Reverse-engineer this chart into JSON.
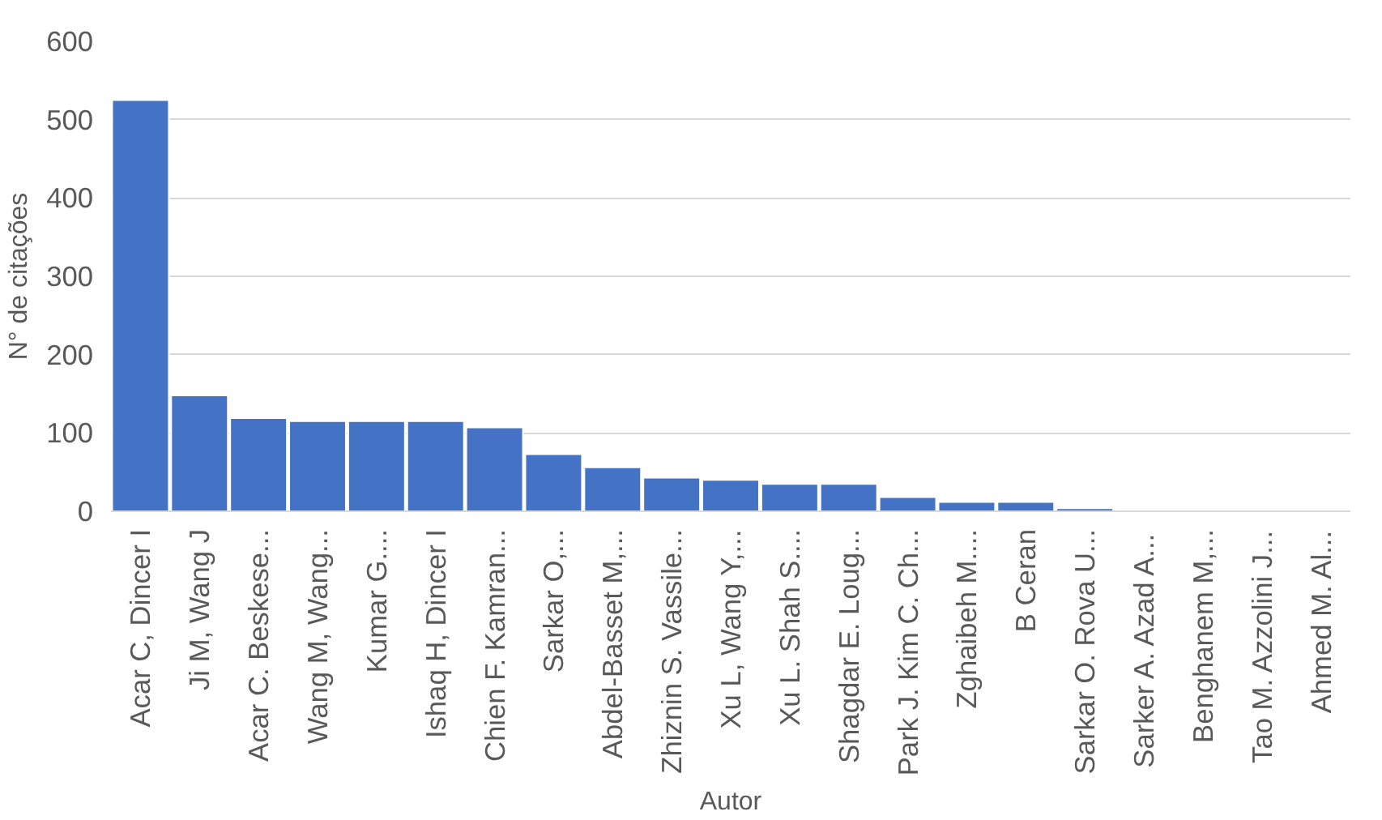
{
  "chart_data": {
    "type": "bar",
    "xlabel": "Autor",
    "ylabel": "N° de citações",
    "categories": [
      "Acar C, Dincer I",
      "Ji M, Wang J",
      "Acar C. Beskese...",
      "Wang M, Wang...",
      "Kumar G....",
      "Ishaq H, Dincer I",
      "Chien F. Kamran...",
      "Sarkar O,...",
      "Abdel-Basset M,...",
      "Zhiznin S. Vassile...",
      "Xu L, Wang Y,...",
      "Xu L. Shah S....",
      "Shagdar E. Loug...",
      "Park J. Kim C. Ch...",
      "Zghaibeh M....",
      "B Ceran",
      "Sarkar O. Rova U...",
      "Sarker A. Azad A...",
      "Benghanem M,...",
      "Tao M. Azzolini J...",
      "Ahmed M. Al..."
    ],
    "values": [
      525,
      148,
      119,
      115,
      115,
      115,
      107,
      73,
      56,
      43,
      40,
      35,
      35,
      18,
      12,
      12,
      4,
      null,
      null,
      null,
      null
    ],
    "color": "#4472c4",
    "ylim": [
      0,
      600
    ],
    "yticks": [
      0,
      100,
      200,
      300,
      400,
      500,
      600
    ],
    "grid": "y"
  }
}
